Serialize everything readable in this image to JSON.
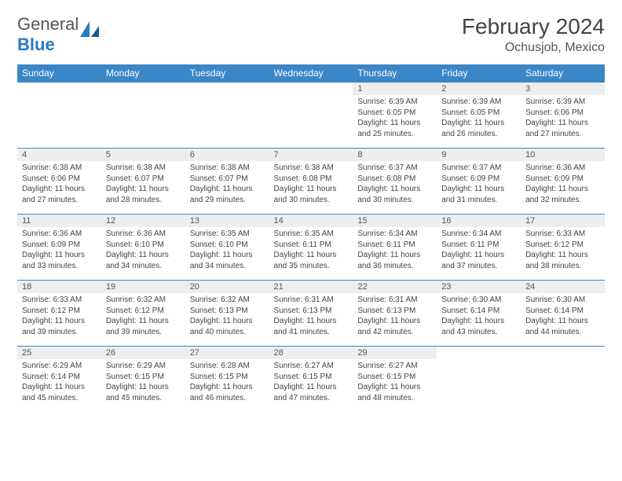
{
  "logo": {
    "text_general": "General",
    "text_blue": "Blue"
  },
  "title": "February 2024",
  "location": "Ochusjob, Mexico",
  "styling": {
    "header_bg": "#3b86c6",
    "header_text": "#ffffff",
    "daynum_bg": "#eeeeee",
    "border_color": "#3b86c6",
    "body_text": "#444444",
    "title_fontsize": 28,
    "location_fontsize": 16,
    "th_fontsize": 12,
    "cell_fontsize": 10
  },
  "weekdays": [
    "Sunday",
    "Monday",
    "Tuesday",
    "Wednesday",
    "Thursday",
    "Friday",
    "Saturday"
  ],
  "weeks": [
    [
      null,
      null,
      null,
      null,
      {
        "n": "1",
        "sr": "Sunrise: 6:39 AM",
        "ss": "Sunset: 6:05 PM",
        "dl1": "Daylight: 11 hours",
        "dl2": "and 25 minutes."
      },
      {
        "n": "2",
        "sr": "Sunrise: 6:39 AM",
        "ss": "Sunset: 6:05 PM",
        "dl1": "Daylight: 11 hours",
        "dl2": "and 26 minutes."
      },
      {
        "n": "3",
        "sr": "Sunrise: 6:39 AM",
        "ss": "Sunset: 6:06 PM",
        "dl1": "Daylight: 11 hours",
        "dl2": "and 27 minutes."
      }
    ],
    [
      {
        "n": "4",
        "sr": "Sunrise: 6:38 AM",
        "ss": "Sunset: 6:06 PM",
        "dl1": "Daylight: 11 hours",
        "dl2": "and 27 minutes."
      },
      {
        "n": "5",
        "sr": "Sunrise: 6:38 AM",
        "ss": "Sunset: 6:07 PM",
        "dl1": "Daylight: 11 hours",
        "dl2": "and 28 minutes."
      },
      {
        "n": "6",
        "sr": "Sunrise: 6:38 AM",
        "ss": "Sunset: 6:07 PM",
        "dl1": "Daylight: 11 hours",
        "dl2": "and 29 minutes."
      },
      {
        "n": "7",
        "sr": "Sunrise: 6:38 AM",
        "ss": "Sunset: 6:08 PM",
        "dl1": "Daylight: 11 hours",
        "dl2": "and 30 minutes."
      },
      {
        "n": "8",
        "sr": "Sunrise: 6:37 AM",
        "ss": "Sunset: 6:08 PM",
        "dl1": "Daylight: 11 hours",
        "dl2": "and 30 minutes."
      },
      {
        "n": "9",
        "sr": "Sunrise: 6:37 AM",
        "ss": "Sunset: 6:09 PM",
        "dl1": "Daylight: 11 hours",
        "dl2": "and 31 minutes."
      },
      {
        "n": "10",
        "sr": "Sunrise: 6:36 AM",
        "ss": "Sunset: 6:09 PM",
        "dl1": "Daylight: 11 hours",
        "dl2": "and 32 minutes."
      }
    ],
    [
      {
        "n": "11",
        "sr": "Sunrise: 6:36 AM",
        "ss": "Sunset: 6:09 PM",
        "dl1": "Daylight: 11 hours",
        "dl2": "and 33 minutes."
      },
      {
        "n": "12",
        "sr": "Sunrise: 6:36 AM",
        "ss": "Sunset: 6:10 PM",
        "dl1": "Daylight: 11 hours",
        "dl2": "and 34 minutes."
      },
      {
        "n": "13",
        "sr": "Sunrise: 6:35 AM",
        "ss": "Sunset: 6:10 PM",
        "dl1": "Daylight: 11 hours",
        "dl2": "and 34 minutes."
      },
      {
        "n": "14",
        "sr": "Sunrise: 6:35 AM",
        "ss": "Sunset: 6:11 PM",
        "dl1": "Daylight: 11 hours",
        "dl2": "and 35 minutes."
      },
      {
        "n": "15",
        "sr": "Sunrise: 6:34 AM",
        "ss": "Sunset: 6:11 PM",
        "dl1": "Daylight: 11 hours",
        "dl2": "and 36 minutes."
      },
      {
        "n": "16",
        "sr": "Sunrise: 6:34 AM",
        "ss": "Sunset: 6:11 PM",
        "dl1": "Daylight: 11 hours",
        "dl2": "and 37 minutes."
      },
      {
        "n": "17",
        "sr": "Sunrise: 6:33 AM",
        "ss": "Sunset: 6:12 PM",
        "dl1": "Daylight: 11 hours",
        "dl2": "and 38 minutes."
      }
    ],
    [
      {
        "n": "18",
        "sr": "Sunrise: 6:33 AM",
        "ss": "Sunset: 6:12 PM",
        "dl1": "Daylight: 11 hours",
        "dl2": "and 39 minutes."
      },
      {
        "n": "19",
        "sr": "Sunrise: 6:32 AM",
        "ss": "Sunset: 6:12 PM",
        "dl1": "Daylight: 11 hours",
        "dl2": "and 39 minutes."
      },
      {
        "n": "20",
        "sr": "Sunrise: 6:32 AM",
        "ss": "Sunset: 6:13 PM",
        "dl1": "Daylight: 11 hours",
        "dl2": "and 40 minutes."
      },
      {
        "n": "21",
        "sr": "Sunrise: 6:31 AM",
        "ss": "Sunset: 6:13 PM",
        "dl1": "Daylight: 11 hours",
        "dl2": "and 41 minutes."
      },
      {
        "n": "22",
        "sr": "Sunrise: 6:31 AM",
        "ss": "Sunset: 6:13 PM",
        "dl1": "Daylight: 11 hours",
        "dl2": "and 42 minutes."
      },
      {
        "n": "23",
        "sr": "Sunrise: 6:30 AM",
        "ss": "Sunset: 6:14 PM",
        "dl1": "Daylight: 11 hours",
        "dl2": "and 43 minutes."
      },
      {
        "n": "24",
        "sr": "Sunrise: 6:30 AM",
        "ss": "Sunset: 6:14 PM",
        "dl1": "Daylight: 11 hours",
        "dl2": "and 44 minutes."
      }
    ],
    [
      {
        "n": "25",
        "sr": "Sunrise: 6:29 AM",
        "ss": "Sunset: 6:14 PM",
        "dl1": "Daylight: 11 hours",
        "dl2": "and 45 minutes."
      },
      {
        "n": "26",
        "sr": "Sunrise: 6:29 AM",
        "ss": "Sunset: 6:15 PM",
        "dl1": "Daylight: 11 hours",
        "dl2": "and 45 minutes."
      },
      {
        "n": "27",
        "sr": "Sunrise: 6:28 AM",
        "ss": "Sunset: 6:15 PM",
        "dl1": "Daylight: 11 hours",
        "dl2": "and 46 minutes."
      },
      {
        "n": "28",
        "sr": "Sunrise: 6:27 AM",
        "ss": "Sunset: 6:15 PM",
        "dl1": "Daylight: 11 hours",
        "dl2": "and 47 minutes."
      },
      {
        "n": "29",
        "sr": "Sunrise: 6:27 AM",
        "ss": "Sunset: 6:15 PM",
        "dl1": "Daylight: 11 hours",
        "dl2": "and 48 minutes."
      },
      null,
      null
    ]
  ]
}
